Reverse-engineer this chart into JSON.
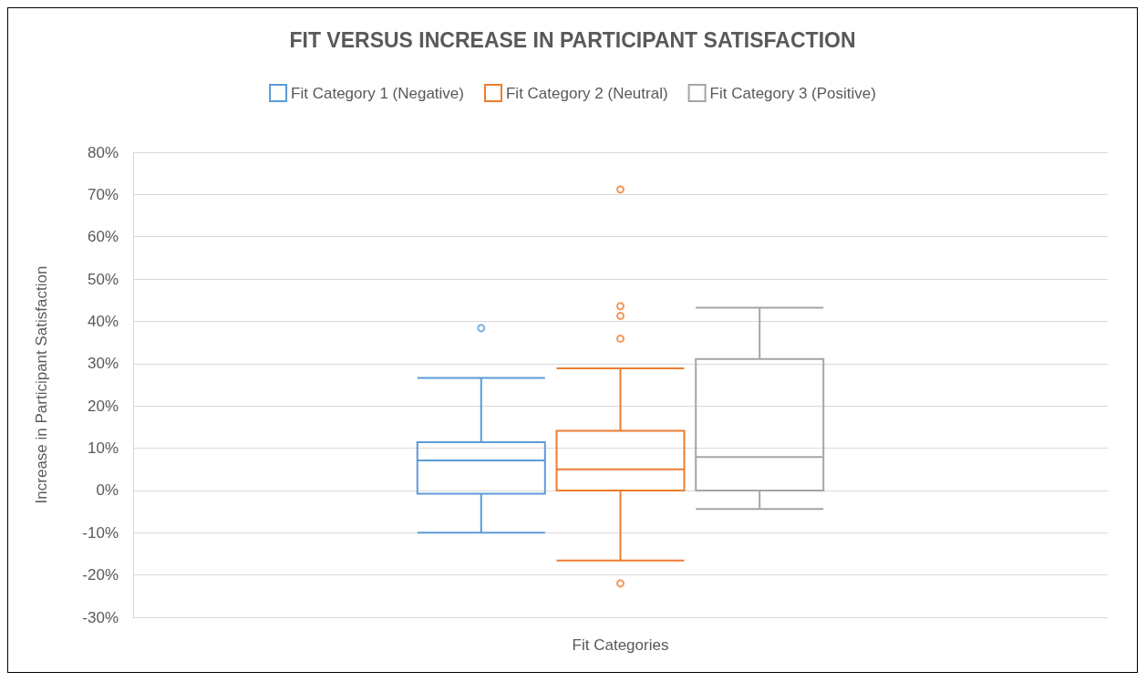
{
  "chart_data": {
    "type": "box",
    "title": "FIT VERSUS INCREASE IN PARTICIPANT SATISFACTION",
    "xlabel": "Fit Categories",
    "ylabel": "Increase in Participant Satisfaction",
    "categories": [
      null
    ],
    "series": [
      {
        "name": "Fit Category 1 (Negative)",
        "color": "#5b9bd5",
        "boxes": [
          {
            "low": -10,
            "q1": -0.8,
            "median": 7.1,
            "q3": 11.4,
            "high": 26.6,
            "outliers": [
              38.4
            ]
          }
        ]
      },
      {
        "name": "Fit Category 2 (Neutral)",
        "color": "#ed7d31",
        "boxes": [
          {
            "low": -16.6,
            "q1": 0,
            "median": 5,
            "q3": 14.1,
            "high": 28.9,
            "outliers": [
              71.2,
              43.6,
              41.3,
              35.9,
              -22
            ]
          }
        ]
      },
      {
        "name": "Fit Category 3 (Positive)",
        "color": "#a5a5a5",
        "boxes": [
          {
            "low": -4.4,
            "q1": 0,
            "median": 7.9,
            "q3": 31.1,
            "high": 43.2
          }
        ]
      }
    ],
    "ylim": [
      -30,
      80
    ],
    "yticks": [
      {
        "value": -30,
        "label": "-30%"
      },
      {
        "value": -20,
        "label": "-20%"
      },
      {
        "value": -10,
        "label": "-10%"
      },
      {
        "value": 0,
        "label": "0%"
      },
      {
        "value": 10,
        "label": "10%"
      },
      {
        "value": 20,
        "label": "20%"
      },
      {
        "value": 30,
        "label": "30%"
      },
      {
        "value": 40,
        "label": "40%"
      },
      {
        "value": 50,
        "label": "50%"
      },
      {
        "value": 60,
        "label": "60%"
      },
      {
        "value": 70,
        "label": "70%"
      },
      {
        "value": 80,
        "label": "80%"
      }
    ],
    "grid": "y",
    "legend": "top"
  }
}
